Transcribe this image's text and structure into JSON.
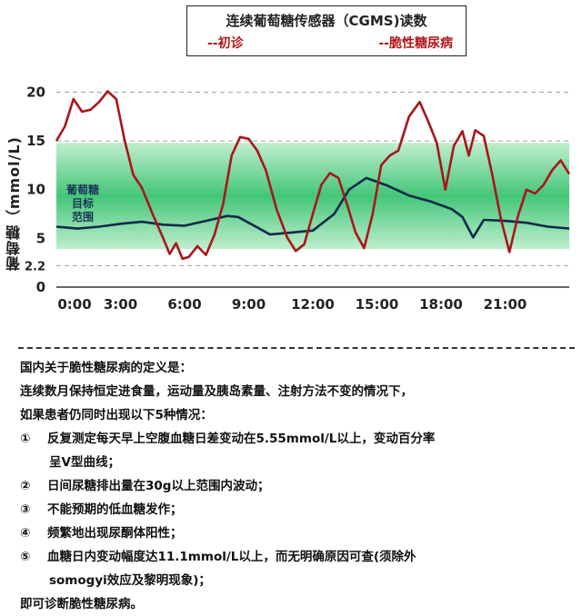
{
  "chart_data": {
    "type": "line",
    "title": "连续葡萄糖传感器（CGMS)读数",
    "ylabel": "葡萄糖（mmol/L)",
    "xlim": [
      0,
      24
    ],
    "ylim": [
      0,
      22
    ],
    "x_ticks": [
      "0:00",
      "3:00",
      "6:00",
      "9:00",
      "12:00",
      "15:00",
      "18:00",
      "21:00"
    ],
    "y_ticks": [
      "0",
      "2.2",
      "5",
      "10",
      "15",
      "20"
    ],
    "target_band": {
      "label_lines": [
        "葡萄糖",
        "目标",
        "范围"
      ],
      "range": [
        3.9,
        14.8
      ]
    },
    "series": [
      {
        "name": "--初诊",
        "color": "#0f2a4a",
        "x": [
          0,
          1,
          2,
          3,
          4,
          5,
          6,
          7,
          8,
          8.5,
          9,
          10,
          11,
          12,
          13,
          13.7,
          14.5,
          15.5,
          16.5,
          17.5,
          18.5,
          19,
          19.5,
          20,
          21,
          22,
          23,
          24
        ],
        "y": [
          6.2,
          6.0,
          6.2,
          6.5,
          6.7,
          6.4,
          6.3,
          6.8,
          7.3,
          7.2,
          6.6,
          5.4,
          5.6,
          5.8,
          7.5,
          10.0,
          11.2,
          10.4,
          9.4,
          8.8,
          8.0,
          7.2,
          5.1,
          6.9,
          6.8,
          6.6,
          6.2,
          6.0
        ]
      },
      {
        "name": "--脆性糖尿病",
        "color": "#a8161b",
        "x": [
          0,
          0.4,
          0.8,
          1.2,
          1.6,
          2.0,
          2.4,
          2.8,
          3.2,
          3.6,
          4.0,
          4.5,
          5.0,
          5.3,
          5.6,
          5.9,
          6.2,
          6.6,
          7.0,
          7.4,
          7.8,
          8.2,
          8.6,
          9.0,
          9.4,
          9.8,
          10.3,
          10.8,
          11.2,
          11.6,
          12.0,
          12.4,
          12.8,
          13.2,
          13.6,
          14.0,
          14.4,
          14.8,
          15.2,
          15.6,
          16.0,
          16.5,
          17.0,
          17.4,
          17.8,
          18.2,
          18.6,
          19.0,
          19.3,
          19.6,
          20.0,
          20.4,
          20.8,
          21.2,
          21.6,
          22.0,
          22.4,
          22.8,
          23.2,
          23.6,
          24.0
        ],
        "y": [
          15.0,
          16.5,
          19.3,
          18.0,
          18.2,
          19.0,
          20.1,
          19.3,
          15.0,
          11.5,
          10.2,
          7.5,
          5.0,
          3.4,
          4.5,
          2.9,
          3.1,
          4.2,
          3.3,
          5.4,
          8.5,
          13.5,
          15.4,
          15.2,
          14.0,
          12.0,
          8.0,
          5.1,
          3.7,
          4.4,
          7.5,
          10.5,
          11.7,
          11.2,
          8.5,
          5.6,
          4.0,
          7.5,
          12.5,
          13.5,
          14.0,
          17.5,
          19.0,
          17.0,
          14.8,
          10.0,
          14.5,
          16.0,
          13.5,
          16.1,
          15.5,
          11.5,
          7.0,
          3.6,
          7.3,
          10.0,
          9.6,
          10.5,
          12.0,
          13.0,
          11.6
        ]
      }
    ],
    "band_color": "#2fc06a",
    "grid": "horizontal-dashed"
  },
  "text": {
    "heading": "国内关于脆性糖尿病的定义是：",
    "intro1": "连续数月保持恒定进食量，运动量及胰岛素量、注射方法不变的情况下，",
    "intro2": "如果患者仍同时出现以下5种情况：",
    "items": [
      {
        "num": "①",
        "line1": "反复测定每天早上空腹血糖日差变动在5.55mmol/L以上，变动百分率",
        "line2": "呈V型曲线；"
      },
      {
        "num": "②",
        "line1": "日间尿糖排出量在30g以上范围内波动；"
      },
      {
        "num": "③",
        "line1": "不能预期的低血糖发作；"
      },
      {
        "num": "④",
        "line1": "频繁地出现尿酮体阳性；"
      },
      {
        "num": "⑤",
        "line1": "血糖日内变动幅度达11.1mmol/L以上，而无明确原因可查(须除外",
        "line2": "somogyi效应及黎明现象)；"
      }
    ],
    "conclusion": "即可诊断脆性糖尿病。"
  }
}
